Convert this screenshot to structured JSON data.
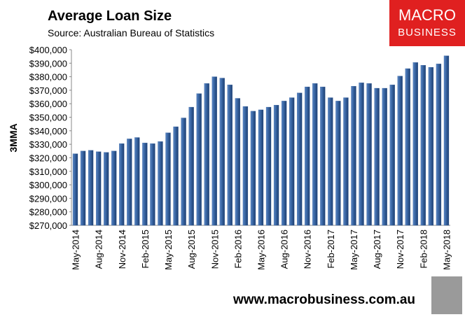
{
  "chart_data": {
    "type": "bar",
    "title": "Average Loan Size",
    "subtitle": "Source: Australian Bureau of Statistics",
    "y_label": "3MMA",
    "logo_line1": "MACRO",
    "logo_line2": "BUSINESS",
    "footer": "www.macrobusiness.com.au",
    "color": "#34609d",
    "categories": [
      "May-2014",
      null,
      null,
      "Aug-2014",
      null,
      null,
      "Nov-2014",
      null,
      null,
      "Feb-2015",
      null,
      null,
      "May-2015",
      null,
      null,
      "Aug-2015",
      null,
      null,
      "Nov-2015",
      null,
      null,
      "Feb-2016",
      null,
      null,
      "May-2016",
      null,
      null,
      "Aug-2016",
      null,
      null,
      "Nov-2016",
      null,
      null,
      "Feb-2017",
      null,
      null,
      "May-2017",
      null,
      null,
      "Aug-2017",
      null,
      null,
      "Nov-2017",
      null,
      null,
      "Feb-2018",
      null,
      null,
      "May-2018"
    ],
    "values": [
      323000,
      325000,
      325500,
      324500,
      324000,
      325000,
      330500,
      334000,
      335000,
      331000,
      330500,
      332000,
      338500,
      343000,
      349500,
      357500,
      367500,
      375000,
      380000,
      379000,
      374000,
      364000,
      358000,
      354500,
      355500,
      357500,
      359000,
      362000,
      364500,
      368000,
      372500,
      375000,
      372500,
      364500,
      362000,
      364500,
      373000,
      375500,
      375000,
      371500,
      371500,
      374000,
      380500,
      386000,
      390500,
      388500,
      387000,
      389500,
      395500
    ],
    "ylim": [
      270000,
      400000
    ],
    "yticks": [
      {
        "value": 270000,
        "label": "$270,000"
      },
      {
        "value": 280000,
        "label": "$280,000"
      },
      {
        "value": 290000,
        "label": "$290,000"
      },
      {
        "value": 300000,
        "label": "$300,000"
      },
      {
        "value": 310000,
        "label": "$310,000"
      },
      {
        "value": 320000,
        "label": "$320,000"
      },
      {
        "value": 330000,
        "label": "$330,000"
      },
      {
        "value": 340000,
        "label": "$340,000"
      },
      {
        "value": 350000,
        "label": "$350,000"
      },
      {
        "value": 360000,
        "label": "$360,000"
      },
      {
        "value": 370000,
        "label": "$370,000"
      },
      {
        "value": 380000,
        "label": "$380,000"
      },
      {
        "value": 390000,
        "label": "$390,000"
      },
      {
        "value": 400000,
        "label": "$400,000"
      }
    ],
    "grid": false
  }
}
